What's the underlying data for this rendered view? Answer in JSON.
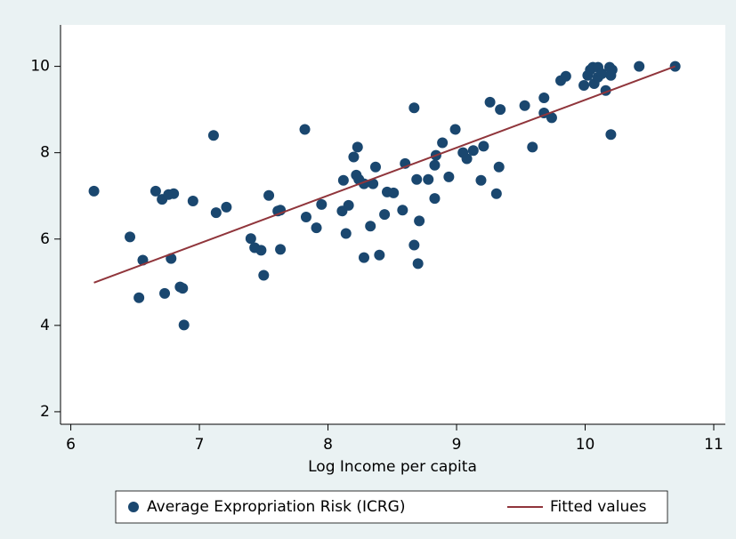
{
  "chart_data": {
    "type": "scatter",
    "xlabel": "Log Income per capita",
    "xlim": [
      5.92,
      11.09
    ],
    "ylim": [
      1.71,
      10.96
    ],
    "xticks": [
      6,
      7,
      8,
      9,
      10,
      11
    ],
    "yticks": [
      2,
      4,
      6,
      8,
      10
    ],
    "grid": false,
    "legend": "bottom",
    "series": [
      {
        "name": "Average Expropriation Risk (ICRG)",
        "type": "scatter",
        "color": "#1a476f",
        "x": [
          6.18,
          6.46,
          6.56,
          6.53,
          6.66,
          6.71,
          6.73,
          6.76,
          6.8,
          6.78,
          6.85,
          6.87,
          6.88,
          6.95,
          7.11,
          7.13,
          7.21,
          7.4,
          7.43,
          7.48,
          7.5,
          7.54,
          7.61,
          7.63,
          7.63,
          7.82,
          7.83,
          7.91,
          7.95,
          8.11,
          8.12,
          8.14,
          8.16,
          8.2,
          8.23,
          8.22,
          8.24,
          8.28,
          8.28,
          8.33,
          8.35,
          8.37,
          8.4,
          8.44,
          8.46,
          8.51,
          8.58,
          8.6,
          8.67,
          8.67,
          8.69,
          8.7,
          8.71,
          8.78,
          8.83,
          8.83,
          8.84,
          8.89,
          8.94,
          8.99,
          9.05,
          9.08,
          9.13,
          9.19,
          9.21,
          9.26,
          9.31,
          9.33,
          9.34,
          9.53,
          9.59,
          9.68,
          9.68,
          9.74,
          9.81,
          9.85,
          9.99,
          10.02,
          10.04,
          10.06,
          10.07,
          10.1,
          10.1,
          10.13,
          10.16,
          10.19,
          10.21,
          10.2,
          10.2,
          10.42,
          10.7
        ],
        "values": [
          7.11,
          6.05,
          5.51,
          4.64,
          7.11,
          6.92,
          4.74,
          7.03,
          7.05,
          5.55,
          4.89,
          4.86,
          4.01,
          6.88,
          8.4,
          6.61,
          6.74,
          6.01,
          5.8,
          5.74,
          5.16,
          7.01,
          6.65,
          6.67,
          5.76,
          8.54,
          6.51,
          6.26,
          6.8,
          6.65,
          7.36,
          6.13,
          6.78,
          7.9,
          8.13,
          7.48,
          7.38,
          7.28,
          5.57,
          6.3,
          7.28,
          7.67,
          5.63,
          6.57,
          7.09,
          7.07,
          6.67,
          7.75,
          9.04,
          5.86,
          7.38,
          5.43,
          6.42,
          7.38,
          6.94,
          7.71,
          7.94,
          8.23,
          7.44,
          8.54,
          8.0,
          7.86,
          8.05,
          7.36,
          8.15,
          9.17,
          7.05,
          7.67,
          9.0,
          9.09,
          8.13,
          9.27,
          8.92,
          8.81,
          9.67,
          9.77,
          9.56,
          9.79,
          9.92,
          9.98,
          9.6,
          9.75,
          9.98,
          9.83,
          9.44,
          9.98,
          9.92,
          9.79,
          8.42,
          10.0,
          10.0
        ]
      },
      {
        "name": "Fitted values",
        "type": "line",
        "color": "#90353b",
        "x": [
          6.18,
          10.7
        ],
        "values": [
          4.99,
          10.0
        ]
      }
    ]
  }
}
